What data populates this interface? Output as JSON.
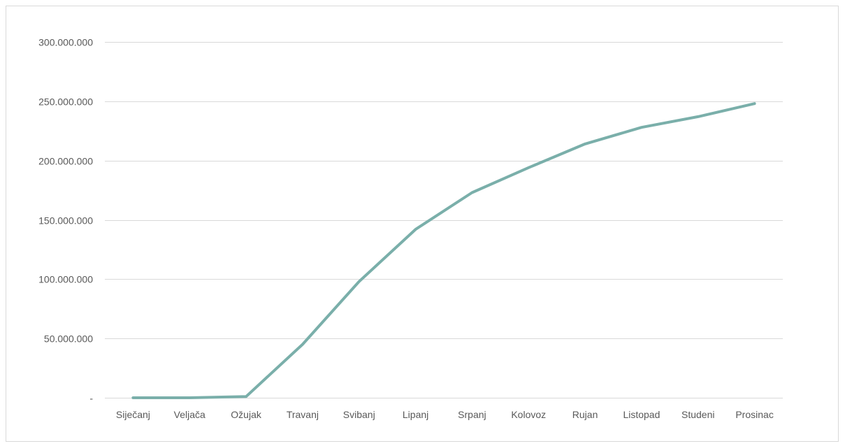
{
  "chart_data": {
    "type": "line",
    "title": "",
    "xlabel": "",
    "ylabel": "",
    "categories": [
      "Siječanj",
      "Veljača",
      "Ožujak",
      "Travanj",
      "Svibanj",
      "Lipanj",
      "Srpanj",
      "Kolovoz",
      "Rujan",
      "Listopad",
      "Studeni",
      "Prosinac"
    ],
    "series": [
      {
        "values": [
          0,
          0,
          1000000,
          45000000,
          98000000,
          142000000,
          173000000,
          194000000,
          214000000,
          228000000,
          237000000,
          248000000
        ],
        "color": "#7aafaa"
      }
    ],
    "ylim": [
      0,
      300000000
    ],
    "yticks": [
      0,
      50000000,
      100000000,
      150000000,
      200000000,
      250000000,
      300000000
    ],
    "ytick_labels": [
      "-",
      "50.000.000",
      "100.000.000",
      "150.000.000",
      "200.000.000",
      "250.000.000",
      "300.000.000"
    ],
    "grid": true,
    "legend": "none"
  }
}
